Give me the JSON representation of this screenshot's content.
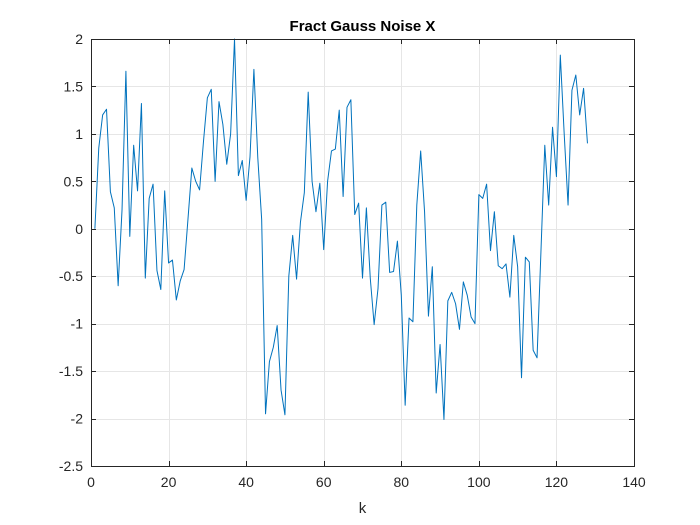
{
  "chart_data": {
    "type": "line",
    "title": "Fract Gauss Noise X",
    "xlabel": "k",
    "ylabel": "",
    "xlim": [
      0,
      140
    ],
    "ylim": [
      -2.5,
      2
    ],
    "xticks": [
      "0",
      "20",
      "40",
      "60",
      "80",
      "100",
      "120",
      "140"
    ],
    "yticks": [
      "-2.5",
      "-2",
      "-1.5",
      "-1",
      "-0.5",
      "0",
      "0.5",
      "1",
      "1.5",
      "2"
    ],
    "grid": true,
    "line_color": "#0072BD",
    "series": [
      {
        "x": [
          1,
          2,
          3,
          4,
          5,
          6,
          7,
          8,
          9,
          10,
          11,
          12,
          13,
          14,
          15,
          16,
          17,
          18,
          19,
          20,
          21,
          22,
          23,
          24,
          25,
          26,
          27,
          28,
          29,
          30,
          31,
          32,
          33,
          34,
          35,
          36,
          37,
          38,
          39,
          40,
          41,
          42,
          43,
          44,
          45,
          46,
          47,
          48,
          49,
          50,
          51,
          52,
          53,
          54,
          55,
          56,
          57,
          58,
          59,
          60,
          61,
          62,
          63,
          64,
          65,
          66,
          67,
          68,
          69,
          70,
          71,
          72,
          73,
          74,
          75,
          76,
          77,
          78,
          79,
          80,
          81,
          82,
          83,
          84,
          85,
          86,
          87,
          88,
          89,
          90,
          91,
          92,
          93,
          94,
          95,
          96,
          97,
          98,
          99,
          100,
          101,
          102,
          103,
          104,
          105,
          106,
          107,
          108,
          109,
          110,
          111,
          112,
          113,
          114,
          115,
          116,
          117,
          118,
          119,
          120,
          121,
          122,
          123,
          124,
          125,
          126,
          127,
          128
        ],
        "values": [
          0.0,
          0.85,
          1.2,
          1.26,
          0.39,
          0.22,
          -0.6,
          0.2,
          1.66,
          -0.08,
          0.88,
          0.4,
          1.32,
          -0.52,
          0.32,
          0.47,
          -0.44,
          -0.64,
          0.4,
          -0.36,
          -0.33,
          -0.75,
          -0.55,
          -0.43,
          0.1,
          0.64,
          0.5,
          0.41,
          0.92,
          1.38,
          1.47,
          0.5,
          1.34,
          1.1,
          0.68,
          1.0,
          2.0,
          0.56,
          0.72,
          0.3,
          0.76,
          1.68,
          0.75,
          0.1,
          -1.95,
          -1.4,
          -1.25,
          -1.02,
          -1.7,
          -1.96,
          -0.5,
          -0.07,
          -0.53,
          0.07,
          0.38,
          1.44,
          0.5,
          0.18,
          0.48,
          -0.22,
          0.5,
          0.82,
          0.84,
          1.25,
          0.34,
          1.28,
          1.36,
          0.15,
          0.27,
          -0.52,
          0.22,
          -0.52,
          -1.01,
          -0.63,
          0.25,
          0.28,
          -0.46,
          -0.45,
          -0.13,
          -0.7,
          -1.86,
          -0.94,
          -0.98,
          0.25,
          0.82,
          0.18,
          -0.92,
          -0.4,
          -1.73,
          -1.22,
          -2.01,
          -0.76,
          -0.67,
          -0.79,
          -1.06,
          -0.56,
          -0.7,
          -0.93,
          -1.0,
          0.36,
          0.32,
          0.47,
          -0.23,
          0.18,
          -0.39,
          -0.42,
          -0.37,
          -0.72,
          -0.07,
          -0.4,
          -1.57,
          -0.3,
          -0.35,
          -1.28,
          -1.36,
          -0.25,
          0.88,
          0.25,
          1.07,
          0.55,
          1.83,
          1.0,
          0.25,
          1.46,
          1.62,
          1.2,
          1.48,
          0.9
        ]
      }
    ]
  }
}
